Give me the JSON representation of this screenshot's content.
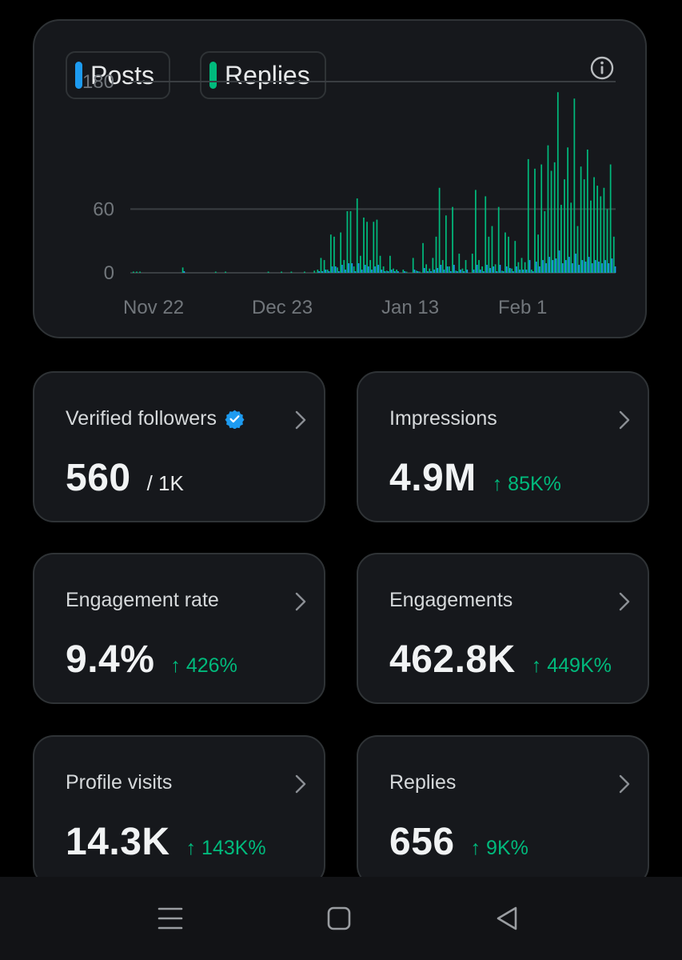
{
  "chart": {
    "legend": [
      {
        "label": "Posts",
        "color": "#1d9bf0"
      },
      {
        "label": "Replies",
        "color": "#00ba7c"
      }
    ],
    "info_icon": "info-icon"
  },
  "chart_data": {
    "type": "bar",
    "title": "",
    "xlabel": "",
    "ylabel": "",
    "ylim": [
      0,
      180
    ],
    "yticks": [
      0,
      60,
      180
    ],
    "xtick_labels": [
      "Nov 22",
      "Dec 23",
      "Jan 13",
      "Feb 1"
    ],
    "series": [
      {
        "name": "Replies",
        "color": "#00ba7c",
        "values": [
          1,
          1,
          1,
          0,
          0,
          0,
          0,
          0,
          0,
          0,
          0,
          0,
          0,
          0,
          0,
          5,
          0,
          0,
          0,
          0,
          0,
          0,
          0,
          0,
          0,
          1,
          0,
          0,
          1,
          0,
          0,
          0,
          0,
          0,
          0,
          0,
          0,
          0,
          0,
          0,
          0,
          1,
          0,
          0,
          0,
          1,
          0,
          0,
          1,
          0,
          0,
          0,
          1,
          0,
          0,
          2,
          3,
          14,
          12,
          3,
          36,
          34,
          5,
          38,
          12,
          58,
          58,
          6,
          70,
          16,
          52,
          48,
          12,
          48,
          50,
          16,
          6,
          2,
          16,
          4,
          3,
          0,
          3,
          1,
          0,
          14,
          2,
          1,
          28,
          8,
          4,
          14,
          34,
          80,
          12,
          54,
          6,
          62,
          2,
          18,
          4,
          12,
          0,
          18,
          78,
          12,
          6,
          72,
          34,
          44,
          8,
          62,
          2,
          38,
          34,
          4,
          30,
          10,
          14,
          10,
          107,
          3,
          98,
          36,
          102,
          58,
          120,
          96,
          104,
          170,
          64,
          88,
          118,
          66,
          164,
          44,
          100,
          88,
          116,
          68,
          90,
          82,
          72,
          80,
          60,
          102,
          34
        ],
        "visible": true
      },
      {
        "name": "Posts",
        "color": "#1d9bf0",
        "values": [
          0,
          0,
          0,
          0,
          0,
          0,
          0,
          0,
          0,
          0,
          0,
          0,
          0,
          0,
          0,
          1,
          0,
          0,
          0,
          0,
          0,
          0,
          0,
          0,
          0,
          0,
          0,
          0,
          0,
          0,
          0,
          0,
          0,
          0,
          0,
          0,
          0,
          0,
          0,
          0,
          0,
          0,
          0,
          0,
          0,
          0,
          0,
          0,
          0,
          0,
          0,
          0,
          0,
          0,
          0,
          0,
          1,
          1,
          2,
          1,
          4,
          4,
          1,
          5,
          2,
          6,
          6,
          1,
          6,
          2,
          5,
          4,
          2,
          4,
          5,
          2,
          1,
          1,
          2,
          1,
          1,
          0,
          1,
          0,
          0,
          2,
          1,
          0,
          3,
          1,
          1,
          2,
          3,
          5,
          2,
          4,
          1,
          5,
          1,
          2,
          1,
          2,
          0,
          2,
          5,
          2,
          1,
          5,
          3,
          4,
          1,
          5,
          1,
          4,
          3,
          1,
          4,
          2,
          2,
          2,
          8,
          1,
          7,
          4,
          8,
          6,
          10,
          8,
          9,
          14,
          6,
          8,
          10,
          6,
          12,
          5,
          8,
          7,
          10,
          6,
          8,
          7,
          6,
          8,
          6,
          9,
          4
        ],
        "visible": true
      }
    ]
  },
  "stats": [
    {
      "label": "Verified followers",
      "value": "560",
      "suffix": "/ 1K",
      "delta": "",
      "verified": true
    },
    {
      "label": "Impressions",
      "value": "4.9M",
      "suffix": "",
      "delta": "↑ 85K%"
    },
    {
      "label": "Engagement rate",
      "value": "9.4%",
      "suffix": "",
      "delta": "↑ 426%"
    },
    {
      "label": "Engagements",
      "value": "462.8K",
      "suffix": "",
      "delta": "↑ 449K%"
    },
    {
      "label": "Profile visits",
      "value": "14.3K",
      "suffix": "",
      "delta": "↑ 143K%"
    },
    {
      "label": "Replies",
      "value": "656",
      "suffix": "",
      "delta": "↑ 9K%"
    }
  ],
  "navbar": {
    "items": [
      "menu-icon",
      "home-square-icon",
      "back-triangle-icon"
    ]
  }
}
